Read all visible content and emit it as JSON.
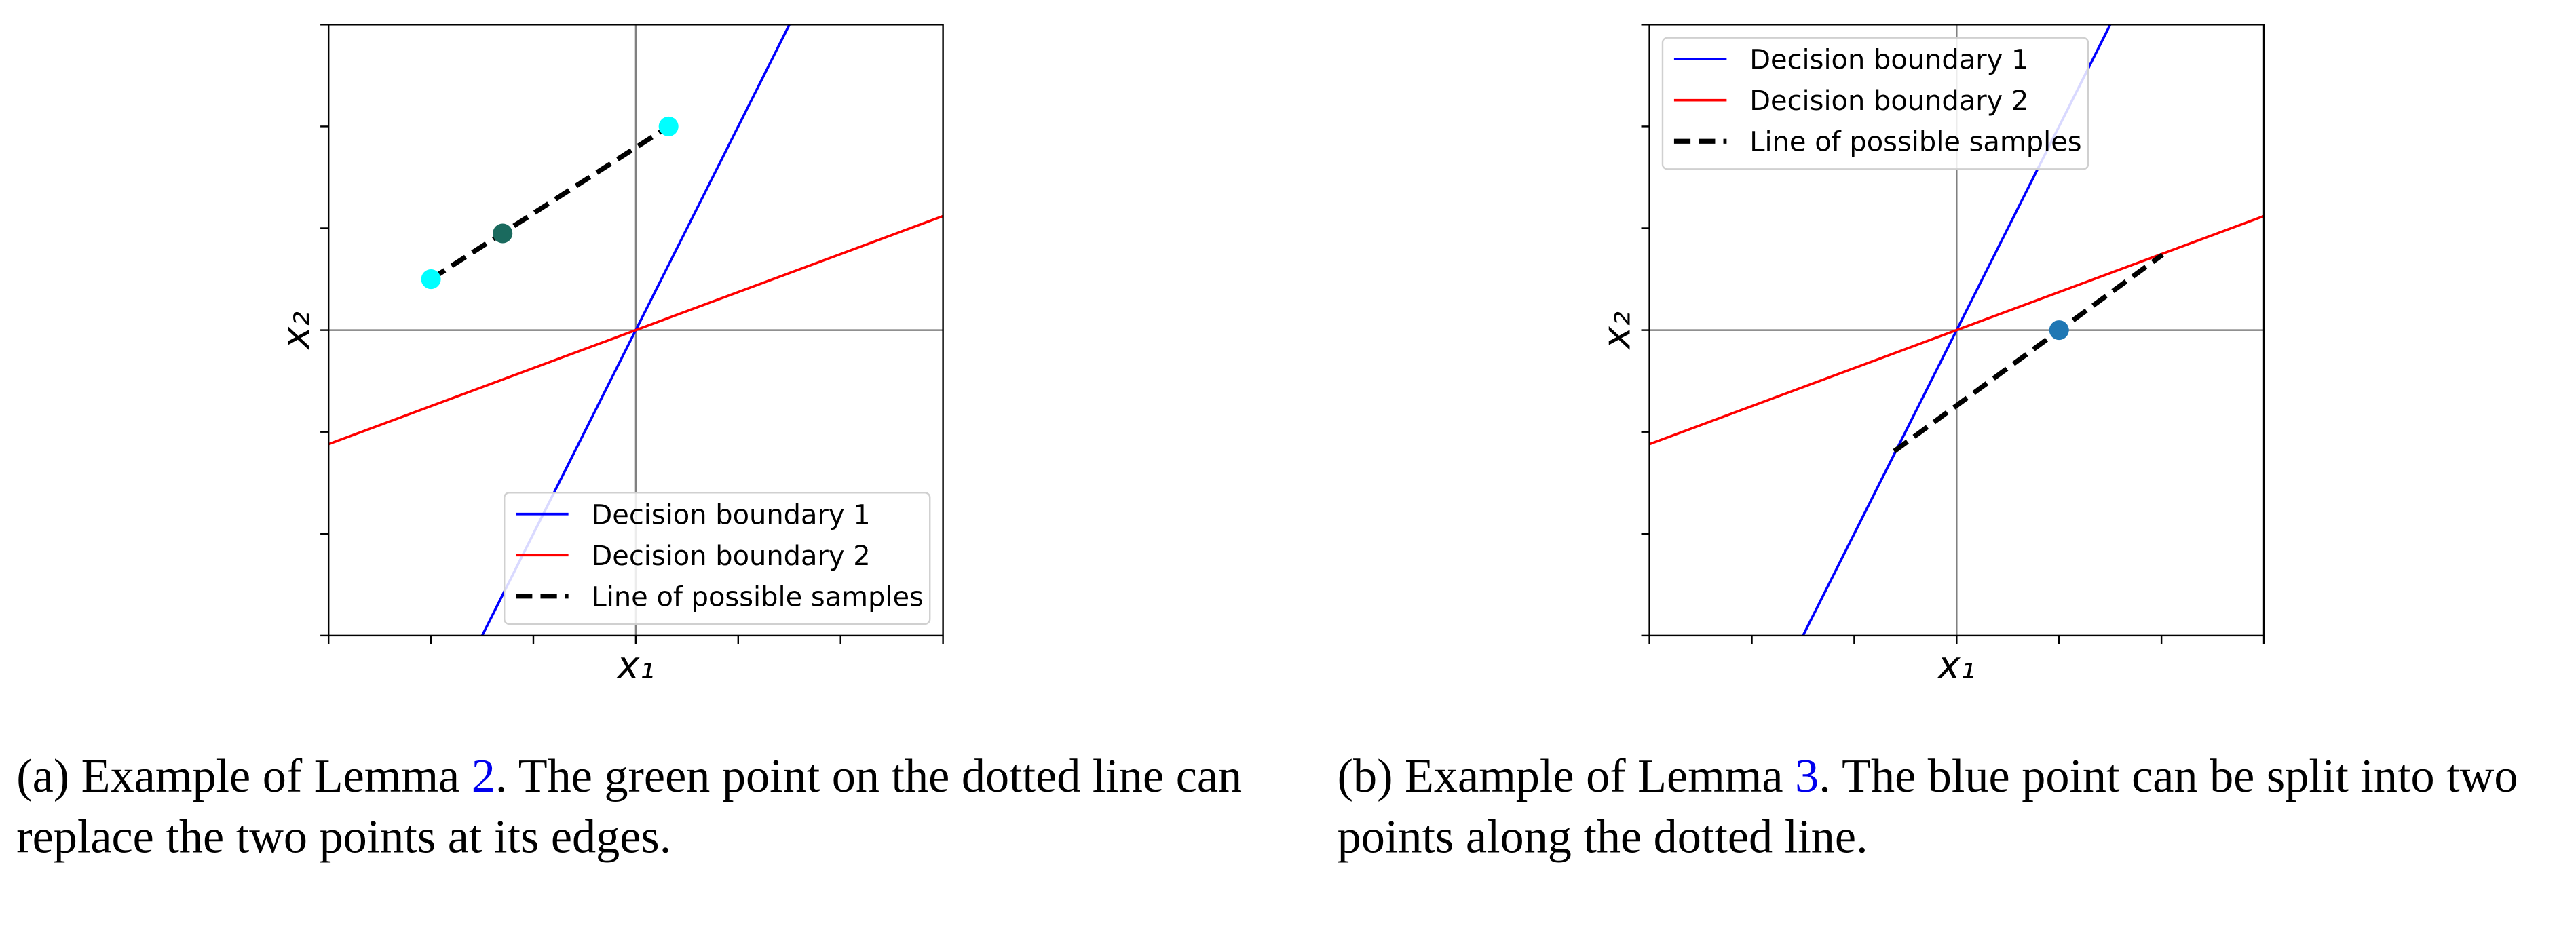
{
  "chart_data": [
    {
      "type": "line",
      "xlabel": "x₁",
      "ylabel": "x₂",
      "xlim": [
        -3,
        3
      ],
      "ylim": [
        -3,
        3
      ],
      "xticks": [
        -3,
        -2,
        -1,
        0,
        1,
        2,
        3
      ],
      "yticks": [
        -3,
        -2,
        -1,
        0,
        1,
        2,
        3
      ],
      "axhline": 0,
      "axvline": 0,
      "legend": "lower right",
      "series": [
        {
          "name": "Decision boundary 1",
          "color": "#0000ff",
          "x": [
            -1.5,
            1.5
          ],
          "values": [
            -3,
            3
          ]
        },
        {
          "name": "Decision boundary 2",
          "color": "#ff0000",
          "x": [
            -3,
            3
          ],
          "values": [
            -1.12,
            1.12
          ]
        },
        {
          "name": "Line of possible samples",
          "color": "#000000",
          "dashed": true,
          "x": [
            -2.0,
            0.32
          ],
          "values": [
            0.5,
            2.0
          ]
        }
      ],
      "points": {
        "x": [
          -2.0,
          0.32,
          -1.3
        ],
        "values": [
          0.5,
          2.0,
          0.95
        ],
        "colors": [
          "#00ffff",
          "#00ffff",
          "#1a6a5e"
        ]
      }
    },
    {
      "type": "line",
      "xlabel": "x₁",
      "ylabel": "x₂",
      "xlim": [
        -3,
        3
      ],
      "ylim": [
        -3,
        3
      ],
      "xticks": [
        -3,
        -2,
        -1,
        0,
        1,
        2,
        3
      ],
      "yticks": [
        -3,
        -2,
        -1,
        0,
        1,
        2,
        3
      ],
      "axhline": 0,
      "axvline": 0,
      "legend": "upper left",
      "series": [
        {
          "name": "Decision boundary 1",
          "color": "#0000ff",
          "x": [
            -1.5,
            1.5
          ],
          "values": [
            -3,
            3
          ]
        },
        {
          "name": "Decision boundary 2",
          "color": "#ff0000",
          "x": [
            -3,
            3
          ],
          "values": [
            -1.12,
            1.12
          ]
        },
        {
          "name": "Line of possible samples",
          "color": "#000000",
          "dashed": true,
          "x": [
            -0.61,
            2.01
          ],
          "values": [
            -1.19,
            0.74
          ]
        }
      ],
      "points": {
        "x": [
          1.0
        ],
        "values": [
          0
        ],
        "colors": [
          "#1f77b4"
        ]
      }
    }
  ],
  "captions": [
    {
      "prefix": "(a) Example of Lemma ",
      "ref": "2",
      "suffix": ". The green point on the dotted line can replace the two points at its edges."
    },
    {
      "prefix": "(b) Example of Lemma ",
      "ref": "3",
      "suffix": ". The blue point can be split into two points along the dotted line."
    }
  ]
}
